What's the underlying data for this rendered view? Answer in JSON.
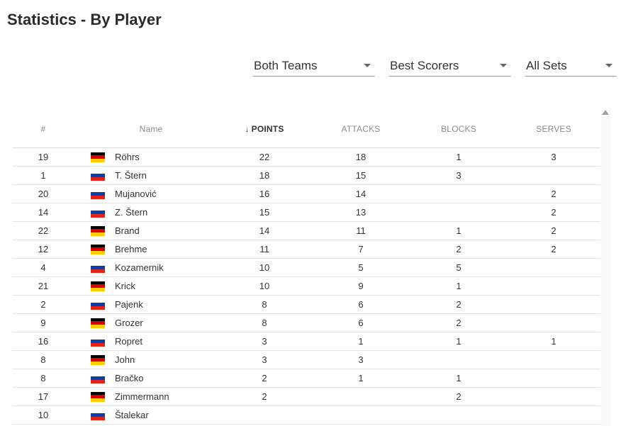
{
  "page_title": "Statistics - By Player",
  "filters": {
    "team": "Both Teams",
    "sort": "Best Scorers",
    "sets": "All Sets"
  },
  "columns": {
    "num": "#",
    "name": "Name",
    "points": "POINTS",
    "attacks": "ATTACKS",
    "blocks": "BLOCKS",
    "serves": "SERVES",
    "sort_arrow": "↓"
  },
  "flag_colors": {
    "germany": [
      "#000000",
      "#dd0000",
      "#ffce00"
    ],
    "slovenia": [
      "#ffffff",
      "#0a3ea8",
      "#e2231a"
    ]
  },
  "players": [
    {
      "num": "19",
      "country": "germany",
      "name": "Röhrs",
      "points": "22",
      "attacks": "18",
      "blocks": "1",
      "serves": "3"
    },
    {
      "num": "1",
      "country": "slovenia",
      "name": "T. Štern",
      "points": "18",
      "attacks": "15",
      "blocks": "3",
      "serves": ""
    },
    {
      "num": "20",
      "country": "slovenia",
      "name": "Mujanović",
      "points": "16",
      "attacks": "14",
      "blocks": "",
      "serves": "2"
    },
    {
      "num": "14",
      "country": "slovenia",
      "name": "Z. Štern",
      "points": "15",
      "attacks": "13",
      "blocks": "",
      "serves": "2"
    },
    {
      "num": "22",
      "country": "germany",
      "name": "Brand",
      "points": "14",
      "attacks": "11",
      "blocks": "1",
      "serves": "2"
    },
    {
      "num": "12",
      "country": "germany",
      "name": "Brehme",
      "points": "11",
      "attacks": "7",
      "blocks": "2",
      "serves": "2"
    },
    {
      "num": "4",
      "country": "slovenia",
      "name": "Kozamernik",
      "points": "10",
      "attacks": "5",
      "blocks": "5",
      "serves": ""
    },
    {
      "num": "21",
      "country": "germany",
      "name": "Krick",
      "points": "10",
      "attacks": "9",
      "blocks": "1",
      "serves": ""
    },
    {
      "num": "2",
      "country": "slovenia",
      "name": "Pajenk",
      "points": "8",
      "attacks": "6",
      "blocks": "2",
      "serves": ""
    },
    {
      "num": "9",
      "country": "germany",
      "name": "Grozer",
      "points": "8",
      "attacks": "6",
      "blocks": "2",
      "serves": ""
    },
    {
      "num": "16",
      "country": "slovenia",
      "name": "Ropret",
      "points": "3",
      "attacks": "1",
      "blocks": "1",
      "serves": "1"
    },
    {
      "num": "8",
      "country": "germany",
      "name": "John",
      "points": "3",
      "attacks": "3",
      "blocks": "",
      "serves": ""
    },
    {
      "num": "8",
      "country": "slovenia",
      "name": "Bračko",
      "points": "2",
      "attacks": "1",
      "blocks": "1",
      "serves": ""
    },
    {
      "num": "17",
      "country": "germany",
      "name": "Zimmermann",
      "points": "2",
      "attacks": "",
      "blocks": "2",
      "serves": ""
    },
    {
      "num": "10",
      "country": "slovenia",
      "name": "Štalekar",
      "points": "",
      "attacks": "",
      "blocks": "",
      "serves": ""
    }
  ]
}
